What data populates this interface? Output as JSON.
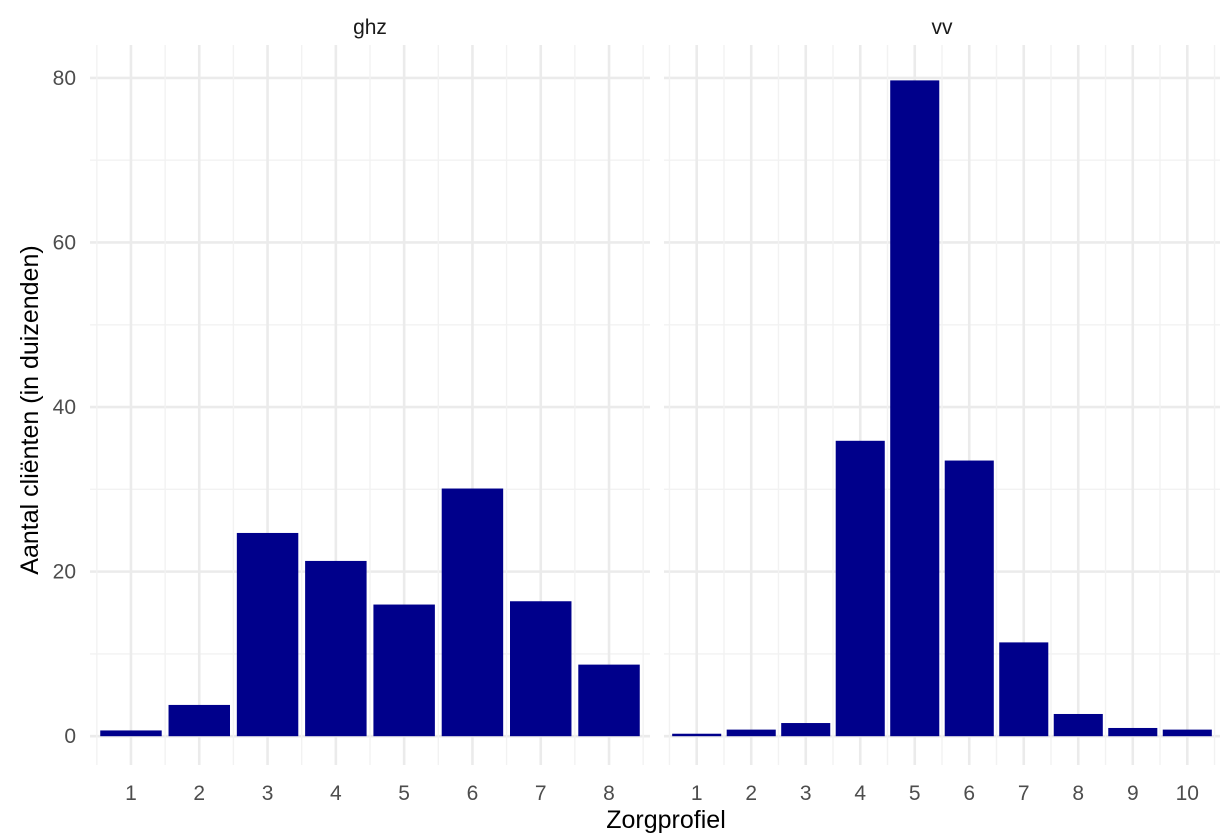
{
  "chart_data": {
    "type": "bar",
    "xlabel": "Zorgprofiel",
    "ylabel": "Aantal cliënten (in duizenden)",
    "ylim": [
      -3.5,
      84
    ],
    "yticks": [
      0,
      20,
      40,
      60,
      80
    ],
    "grid": true,
    "bar_color": "#00008B",
    "facets": [
      {
        "name": "ghz",
        "categories": [
          "1",
          "2",
          "3",
          "4",
          "5",
          "6",
          "7",
          "8"
        ],
        "values": [
          0.7,
          3.8,
          24.7,
          21.3,
          16.0,
          30.1,
          16.4,
          8.7
        ]
      },
      {
        "name": "vv",
        "categories": [
          "1",
          "2",
          "3",
          "4",
          "5",
          "6",
          "7",
          "8",
          "9",
          "10"
        ],
        "values": [
          0.3,
          0.8,
          1.6,
          35.9,
          79.7,
          33.5,
          11.4,
          2.7,
          1.0,
          0.8
        ]
      }
    ]
  }
}
